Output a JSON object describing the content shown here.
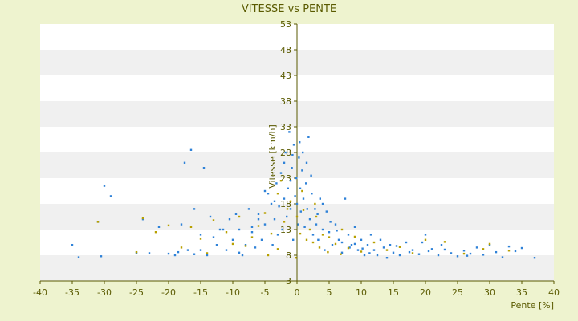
{
  "chart_data": {
    "type": "scatter",
    "title": "VITESSE vs PENTE",
    "xlabel": "Pente [%]",
    "ylabel": "Vitesse [km/h]",
    "xlim": [
      -40,
      40
    ],
    "ylim": [
      3,
      53
    ],
    "x_ticks": [
      "-40",
      "-35",
      "-30",
      "-25",
      "-20",
      "-15",
      "-10",
      "-5",
      "0",
      "5",
      "10",
      "15",
      "20",
      "25",
      "30",
      "35",
      "40"
    ],
    "y_ticks": [
      "3",
      "8",
      "13",
      "18",
      "23",
      "28",
      "33",
      "38",
      "43",
      "48",
      "53"
    ],
    "grid": "horizontal alternating bands",
    "legend": "none",
    "colors": {
      "background": "#eef3cf",
      "band_light": "#ffffff",
      "band_dark": "#f0f0f0",
      "axis": "#5a5a00",
      "series_primary": "#2f82d8",
      "series_secondary": "#b8a000"
    },
    "series": [
      {
        "values": [
          [
            -35,
            10
          ],
          [
            -34,
            7.6
          ],
          [
            -30.5,
            7.8
          ],
          [
            -30,
            21.5
          ],
          [
            -29,
            19.5
          ],
          [
            -31,
            14.5
          ],
          [
            -25,
            8.5
          ],
          [
            -24,
            15
          ],
          [
            -23,
            8.4
          ],
          [
            -21.5,
            13.5
          ],
          [
            -20,
            8.3
          ],
          [
            -19,
            8
          ],
          [
            -18,
            14
          ],
          [
            -17.5,
            26
          ],
          [
            -16.5,
            28.5
          ],
          [
            -16,
            17
          ],
          [
            -15,
            12
          ],
          [
            -14.5,
            25
          ],
          [
            -14,
            8
          ],
          [
            -13,
            11.5
          ],
          [
            -12,
            13
          ],
          [
            -11,
            9
          ],
          [
            -10.5,
            15
          ],
          [
            -10,
            11
          ],
          [
            -9.5,
            16
          ],
          [
            -9,
            13
          ],
          [
            -8.5,
            8
          ],
          [
            -8,
            10
          ],
          [
            -7.5,
            17
          ],
          [
            -7,
            12.5
          ],
          [
            -6.5,
            9.5
          ],
          [
            -6,
            16
          ],
          [
            -5.5,
            11
          ],
          [
            -5,
            14
          ],
          [
            -4.5,
            20
          ],
          [
            -4,
            18
          ],
          [
            -3.8,
            10
          ],
          [
            -3.5,
            15
          ],
          [
            -3.2,
            22
          ],
          [
            -3,
            12
          ],
          [
            -2.8,
            17.5
          ],
          [
            -2.5,
            24
          ],
          [
            -2.3,
            13
          ],
          [
            -2,
            19
          ],
          [
            -1.8,
            28
          ],
          [
            -1.6,
            15.5
          ],
          [
            -1.4,
            21
          ],
          [
            -1.2,
            32
          ],
          [
            -1,
            17
          ],
          [
            -0.8,
            25
          ],
          [
            -0.6,
            11
          ],
          [
            -0.5,
            29.5
          ],
          [
            -0.3,
            19.5
          ],
          [
            -0.1,
            23
          ],
          [
            0,
            18
          ],
          [
            0.2,
            14
          ],
          [
            0.3,
            27
          ],
          [
            0.5,
            21
          ],
          [
            0.6,
            16.5
          ],
          [
            0.8,
            24.5
          ],
          [
            1,
            19
          ],
          [
            1.2,
            13.5
          ],
          [
            1.4,
            22
          ],
          [
            1.6,
            17
          ],
          [
            1.8,
            31
          ],
          [
            2,
            15
          ],
          [
            2.3,
            20
          ],
          [
            2.5,
            12
          ],
          [
            2.8,
            17
          ],
          [
            3,
            14
          ],
          [
            3.3,
            11
          ],
          [
            3.6,
            19
          ],
          [
            4,
            13
          ],
          [
            4.3,
            9
          ],
          [
            4.6,
            16.5
          ],
          [
            5,
            12.5
          ],
          [
            5.5,
            10
          ],
          [
            6,
            14
          ],
          [
            6.5,
            11
          ],
          [
            7,
            8.5
          ],
          [
            7.5,
            19
          ],
          [
            8,
            12
          ],
          [
            8.5,
            10
          ],
          [
            9,
            13.5
          ],
          [
            9.5,
            9
          ],
          [
            10,
            11
          ],
          [
            10.5,
            8
          ],
          [
            11,
            10
          ],
          [
            11.5,
            12
          ],
          [
            12,
            9
          ],
          [
            12.5,
            8
          ],
          [
            13,
            11
          ],
          [
            13.5,
            9.5
          ],
          [
            14,
            7.5
          ],
          [
            14.5,
            10
          ],
          [
            15,
            8.5
          ],
          [
            15.5,
            9.8
          ],
          [
            16,
            8
          ],
          [
            17,
            10.5
          ],
          [
            17.5,
            8.6
          ],
          [
            18,
            9
          ],
          [
            19,
            8.2
          ],
          [
            19.5,
            10.5
          ],
          [
            20,
            12
          ],
          [
            20.5,
            8.8
          ],
          [
            21,
            9.2
          ],
          [
            22,
            8
          ],
          [
            22.5,
            10
          ],
          [
            23,
            9.1
          ],
          [
            24,
            8.4
          ],
          [
            25,
            7.8
          ],
          [
            26,
            8.9
          ],
          [
            26.5,
            7.9
          ],
          [
            27,
            8.3
          ],
          [
            28,
            9.5
          ],
          [
            29,
            8.1
          ],
          [
            30,
            10
          ],
          [
            31,
            8.6
          ],
          [
            32,
            7.6
          ],
          [
            33,
            9.7
          ],
          [
            34,
            8.8
          ],
          [
            35,
            9.4
          ],
          [
            37,
            7.5
          ],
          [
            -2,
            26
          ],
          [
            -1,
            22.5
          ],
          [
            0.4,
            30
          ],
          [
            1.5,
            26
          ],
          [
            -0.7,
            27.5
          ],
          [
            0.9,
            28
          ],
          [
            2.2,
            23.5
          ],
          [
            -3.5,
            18.5
          ],
          [
            -5,
            20.5
          ],
          [
            -6,
            15
          ],
          [
            -7,
            13.5
          ],
          [
            3.2,
            16
          ],
          [
            4,
            18
          ],
          [
            5.2,
            14.5
          ],
          [
            6.2,
            12.8
          ],
          [
            7,
            10.5
          ],
          [
            8.2,
            9.5
          ],
          [
            9,
            10.2
          ],
          [
            10.2,
            9.3
          ],
          [
            11.3,
            8.4
          ],
          [
            -9,
            8.5
          ],
          [
            -12.5,
            10
          ],
          [
            -15,
            9
          ],
          [
            -16,
            8.2
          ],
          [
            -17,
            9
          ],
          [
            -18.5,
            8.6
          ],
          [
            -13.5,
            15.5
          ],
          [
            -11.5,
            13
          ]
        ]
      },
      {
        "values": [
          [
            -31,
            14.5
          ],
          [
            -25,
            8.6
          ],
          [
            -24,
            15.2
          ],
          [
            -20,
            13.8
          ],
          [
            -16.5,
            13.5
          ],
          [
            -15,
            11.2
          ],
          [
            -13,
            14.8
          ],
          [
            -11,
            12.5
          ],
          [
            -9,
            15.5
          ],
          [
            -8,
            9.8
          ],
          [
            -7,
            11.5
          ],
          [
            -6,
            13.7
          ],
          [
            -5,
            16.2
          ],
          [
            -4,
            12.2
          ],
          [
            -3,
            20
          ],
          [
            -2,
            14.5
          ],
          [
            -1,
            18.5
          ],
          [
            0,
            15.5
          ],
          [
            0.5,
            12.2
          ],
          [
            1,
            16.8
          ],
          [
            1.5,
            11
          ],
          [
            2,
            13
          ],
          [
            2.5,
            10.5
          ],
          [
            3,
            15.5
          ],
          [
            3.5,
            9.5
          ],
          [
            4,
            12
          ],
          [
            5,
            11.5
          ],
          [
            6,
            10.2
          ],
          [
            7,
            13
          ],
          [
            8,
            9.4
          ],
          [
            9,
            11.6
          ],
          [
            10,
            8.7
          ],
          [
            12,
            10.5
          ],
          [
            14,
            9
          ],
          [
            16,
            9.6
          ],
          [
            18,
            8.4
          ],
          [
            20,
            11
          ],
          [
            23,
            10.6
          ],
          [
            26,
            8.3
          ],
          [
            29,
            9.2
          ],
          [
            30,
            10.2
          ],
          [
            33,
            8.9
          ],
          [
            -14,
            8.4
          ],
          [
            -18,
            9.5
          ],
          [
            -22,
            12.5
          ],
          [
            -10,
            10.2
          ],
          [
            -2.5,
            22.5
          ],
          [
            -1.5,
            17
          ],
          [
            0.8,
            20.5
          ],
          [
            2.8,
            18
          ],
          [
            -0.2,
            7.5
          ],
          [
            -4.5,
            8
          ],
          [
            -3,
            9.2
          ],
          [
            4.8,
            8.6
          ],
          [
            6.8,
            8.2
          ]
        ]
      }
    ]
  }
}
